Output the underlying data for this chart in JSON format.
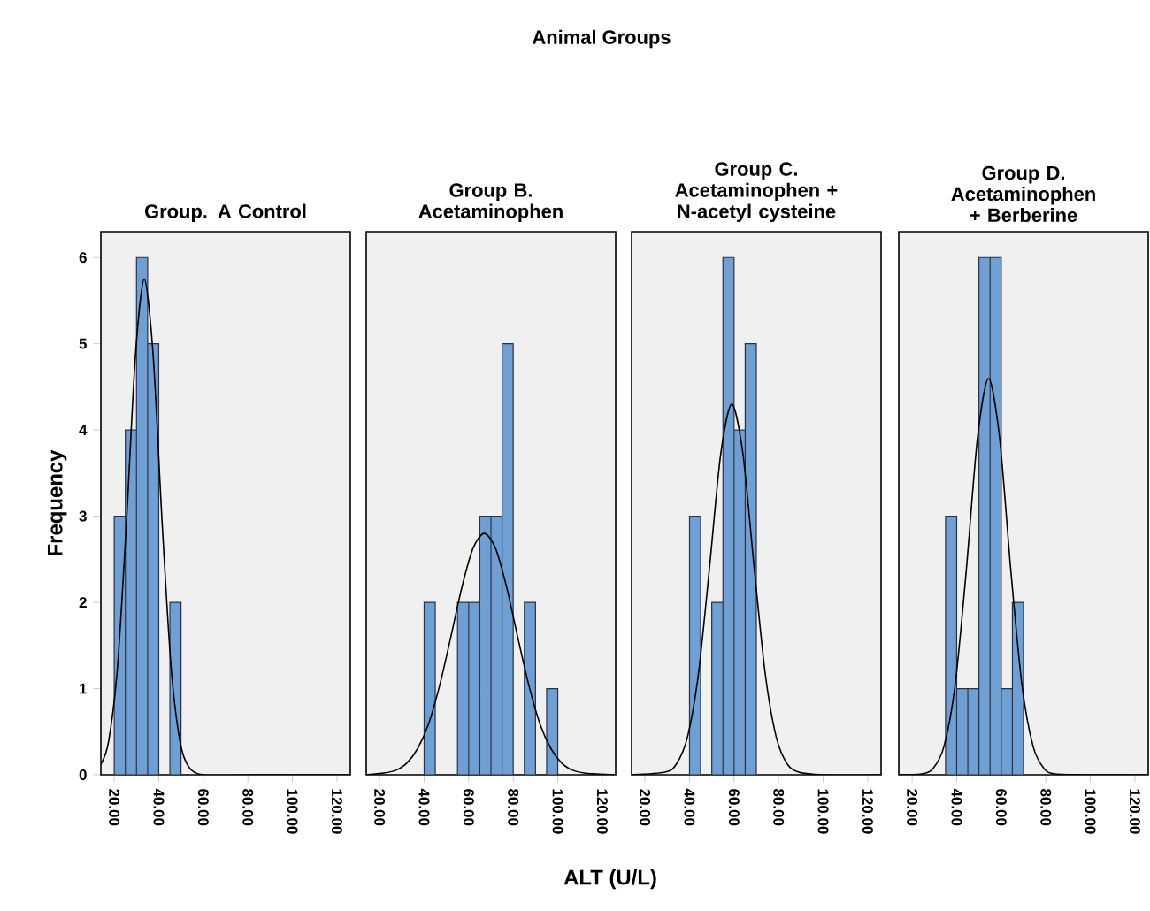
{
  "chart_data": [
    {
      "type": "histogram",
      "title": "Group. A Control",
      "annotations": [
        "Animal Groups"
      ],
      "ylabel": "Frequency",
      "xlim": [
        14,
        126
      ],
      "ylim": [
        0,
        6.3
      ],
      "xticks": [
        {
          "value": 20,
          "label": "20.00"
        },
        {
          "value": 40,
          "label": "40.00"
        },
        {
          "value": 60,
          "label": "60.00"
        },
        {
          "value": 80,
          "label": "80.00"
        },
        {
          "value": 100,
          "label": "100.00"
        },
        {
          "value": 120,
          "label": "120.00"
        }
      ],
      "yticks": [
        0,
        1,
        2,
        3,
        4,
        5,
        6
      ],
      "series": [
        {
          "color": "#6f9fd3",
          "bins": [
            20,
            25,
            30,
            35,
            40,
            45,
            50
          ],
          "values": [
            3,
            4,
            6,
            5,
            0,
            2
          ]
        },
        {
          "type": "line",
          "color": "#000000",
          "x": [
            14,
            17.5,
            21.5,
            25.5,
            29.5,
            33.5,
            37.5,
            41.5,
            45.5,
            49.5,
            53.5,
            60,
            80,
            100,
            126
          ],
          "values": [
            0.12,
            0.39,
            1.26,
            2.93,
            4.86,
            5.75,
            4.86,
            2.93,
            1.26,
            0.39,
            0.09,
            0,
            0,
            0,
            0
          ]
        }
      ]
    },
    {
      "type": "histogram",
      "title": "Group B. Acetaminophen",
      "xlabel": "ALT (U/L)",
      "xlim": [
        14,
        126
      ],
      "ylim": [
        0,
        6.3
      ],
      "tick_labels": "x",
      "xticks": [
        {
          "value": 20,
          "label": "20.00"
        },
        {
          "value": 40,
          "label": "40.00"
        },
        {
          "value": 60,
          "label": "60.00"
        },
        {
          "value": 80,
          "label": "80.00"
        },
        {
          "value": 100,
          "label": "100.00"
        },
        {
          "value": 120,
          "label": "120.00"
        }
      ],
      "yticks": [
        0,
        1,
        2,
        3,
        4,
        5,
        6
      ],
      "series": [
        {
          "color": "#6f9fd3",
          "bins": [
            40,
            45,
            50,
            55,
            60,
            65,
            70,
            75,
            80,
            85,
            90,
            95,
            100
          ],
          "values": [
            2,
            0,
            0,
            2,
            2,
            3,
            3,
            5,
            0,
            2,
            0,
            1
          ]
        },
        {
          "type": "line",
          "color": "#000000",
          "x": [
            14,
            22,
            27,
            32,
            37,
            42,
            47,
            52,
            57,
            62,
            67,
            72,
            77,
            82,
            87,
            92,
            97,
            102,
            107,
            112,
            117,
            126
          ],
          "values": [
            0,
            0.02,
            0.05,
            0.13,
            0.3,
            0.59,
            1.04,
            1.6,
            2.18,
            2.63,
            2.8,
            2.63,
            2.18,
            1.6,
            1.04,
            0.59,
            0.3,
            0.13,
            0.05,
            0.02,
            0.01,
            0
          ]
        }
      ]
    },
    {
      "type": "histogram",
      "title": "Group C. Acetaminophen + N-acetyl cysteine",
      "xlim": [
        14,
        126
      ],
      "ylim": [
        0,
        6.3
      ],
      "tick_labels": "x",
      "xticks": [
        {
          "value": 20,
          "label": "20.00"
        },
        {
          "value": 40,
          "label": "40.00"
        },
        {
          "value": 60,
          "label": "60.00"
        },
        {
          "value": 80,
          "label": "80.00"
        },
        {
          "value": 100,
          "label": "100.00"
        },
        {
          "value": 120,
          "label": "120.00"
        }
      ],
      "yticks": [
        0,
        1,
        2,
        3,
        4,
        5,
        6
      ],
      "series": [
        {
          "color": "#6f9fd3",
          "bins": [
            40,
            45,
            50,
            55,
            60,
            65,
            70
          ],
          "values": [
            3,
            0,
            2,
            6,
            4,
            5
          ]
        },
        {
          "type": "line",
          "color": "#000000",
          "x": [
            14,
            29,
            34,
            39,
            44,
            49,
            54,
            59,
            64,
            69,
            74,
            79,
            84,
            89,
            100,
            126
          ],
          "values": [
            0,
            0.03,
            0.12,
            0.43,
            1.17,
            2.41,
            3.72,
            4.3,
            3.72,
            2.41,
            1.17,
            0.43,
            0.12,
            0.03,
            0,
            0
          ]
        }
      ]
    },
    {
      "type": "histogram",
      "title": "Group D. Acetaminophen + Berberine",
      "xlim": [
        14,
        126
      ],
      "ylim": [
        0,
        6.3
      ],
      "tick_labels": "x",
      "xticks": [
        {
          "value": 20,
          "label": "20.00"
        },
        {
          "value": 40,
          "label": "40.00"
        },
        {
          "value": 60,
          "label": "60.00"
        },
        {
          "value": 80,
          "label": "80.00"
        },
        {
          "value": 100,
          "label": "100.00"
        },
        {
          "value": 120,
          "label": "120.00"
        }
      ],
      "yticks": [
        0,
        1,
        2,
        3,
        4,
        5,
        6
      ],
      "series": [
        {
          "color": "#6f9fd3",
          "bins": [
            35,
            40,
            45,
            50,
            55,
            60,
            65,
            70
          ],
          "values": [
            3,
            1,
            1,
            6,
            6,
            1,
            2
          ]
        },
        {
          "type": "line",
          "color": "#000000",
          "x": [
            14,
            24.3,
            29.3,
            34.3,
            39.3,
            44.3,
            49.3,
            54.3,
            59.3,
            64.3,
            69.3,
            74.3,
            79.3,
            84.3,
            100,
            126
          ],
          "values": [
            0,
            0.01,
            0.07,
            0.33,
            1.04,
            2.37,
            3.9,
            4.6,
            3.9,
            2.37,
            1.04,
            0.33,
            0.07,
            0.01,
            0,
            0
          ]
        }
      ]
    }
  ]
}
